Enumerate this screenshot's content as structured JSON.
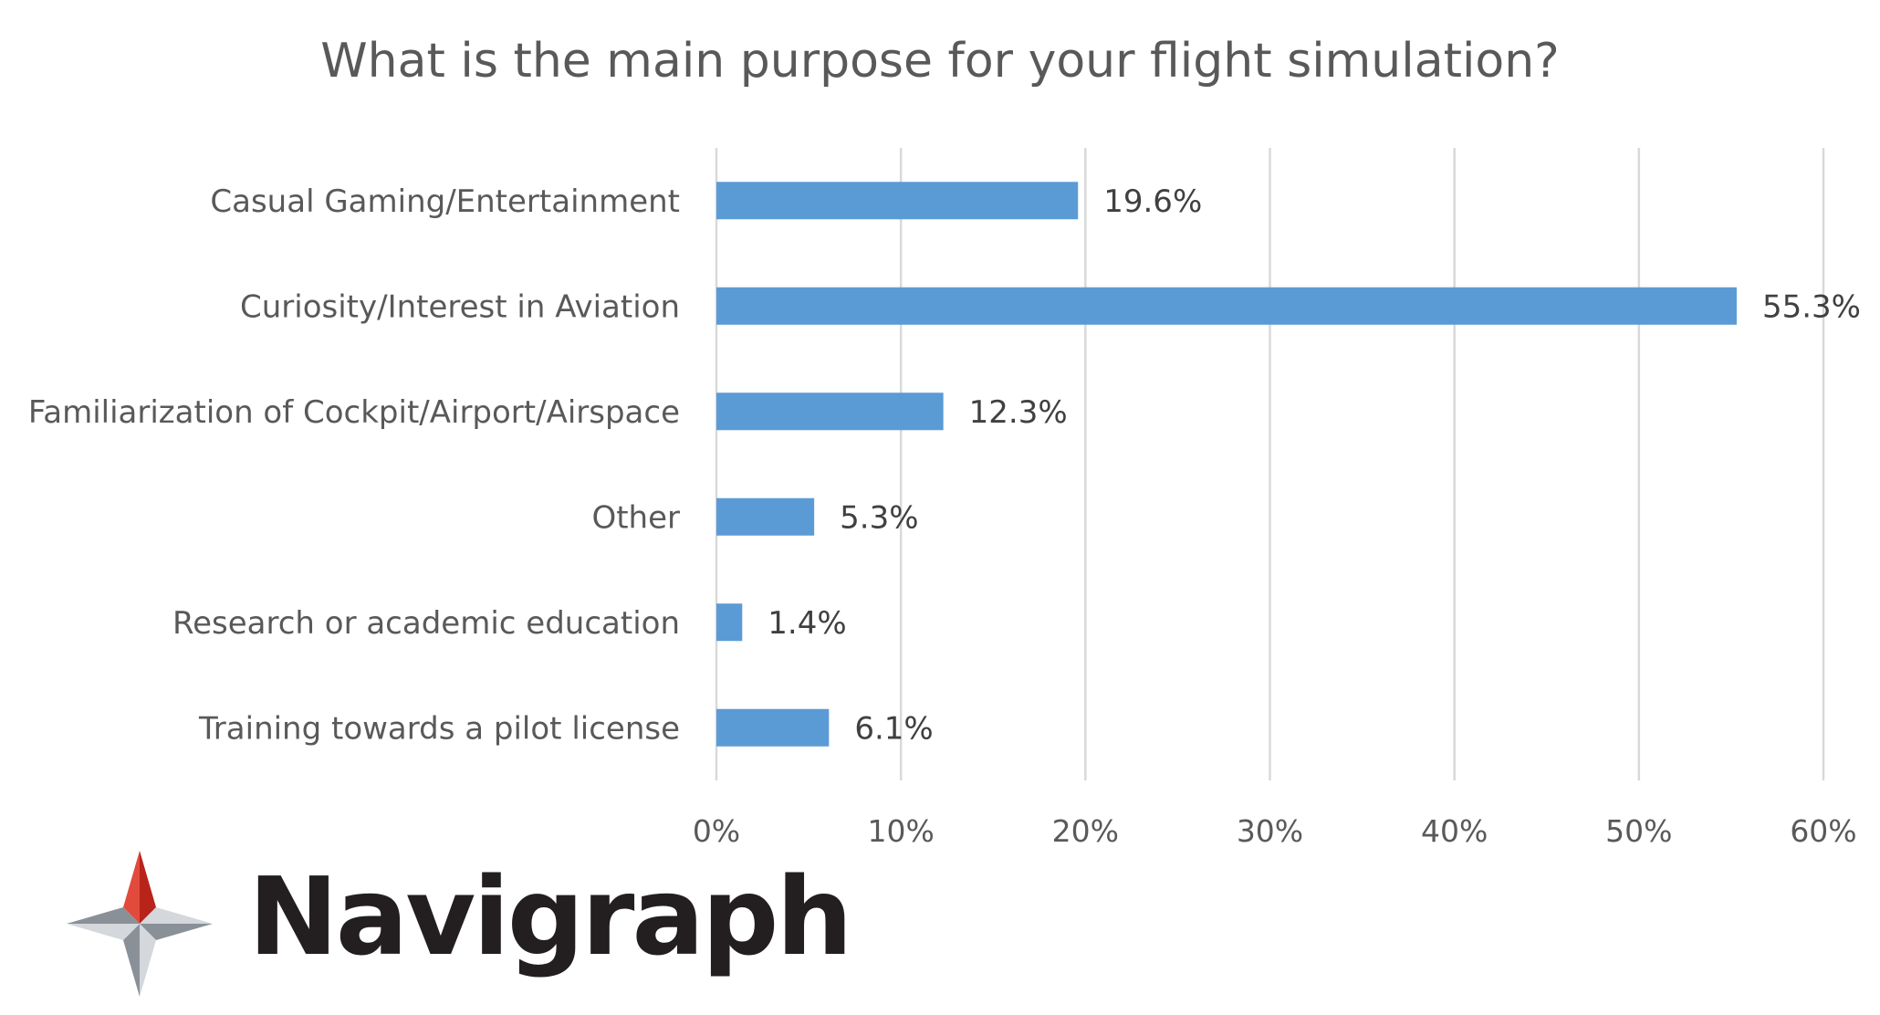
{
  "chart_data": {
    "type": "bar",
    "orientation": "horizontal",
    "title": "What is the main purpose for your flight simulation?",
    "categories": [
      "Casual Gaming/Entertainment",
      "Curiosity/Interest in Aviation",
      "Familiarization of Cockpit/Airport/Airspace",
      "Other",
      "Research or academic education",
      "Training towards a pilot license"
    ],
    "values": [
      19.6,
      55.3,
      12.3,
      5.3,
      1.4,
      6.1
    ],
    "data_labels": [
      "19.6%",
      "55.3%",
      "12.3%",
      "5.3%",
      "1.4%",
      "6.1%"
    ],
    "xlim": [
      0,
      60
    ],
    "x_ticks": [
      "0%",
      "10%",
      "20%",
      "30%",
      "40%",
      "50%",
      "60%"
    ],
    "grid": "vertical",
    "bar_color": "#5b9bd5"
  },
  "logo": {
    "text": "Navigraph",
    "colors": {
      "red_light": "#e24a3c",
      "red_dark": "#b8231a",
      "gray_light": "#d4d7db",
      "gray_dark": "#8a9097"
    }
  }
}
